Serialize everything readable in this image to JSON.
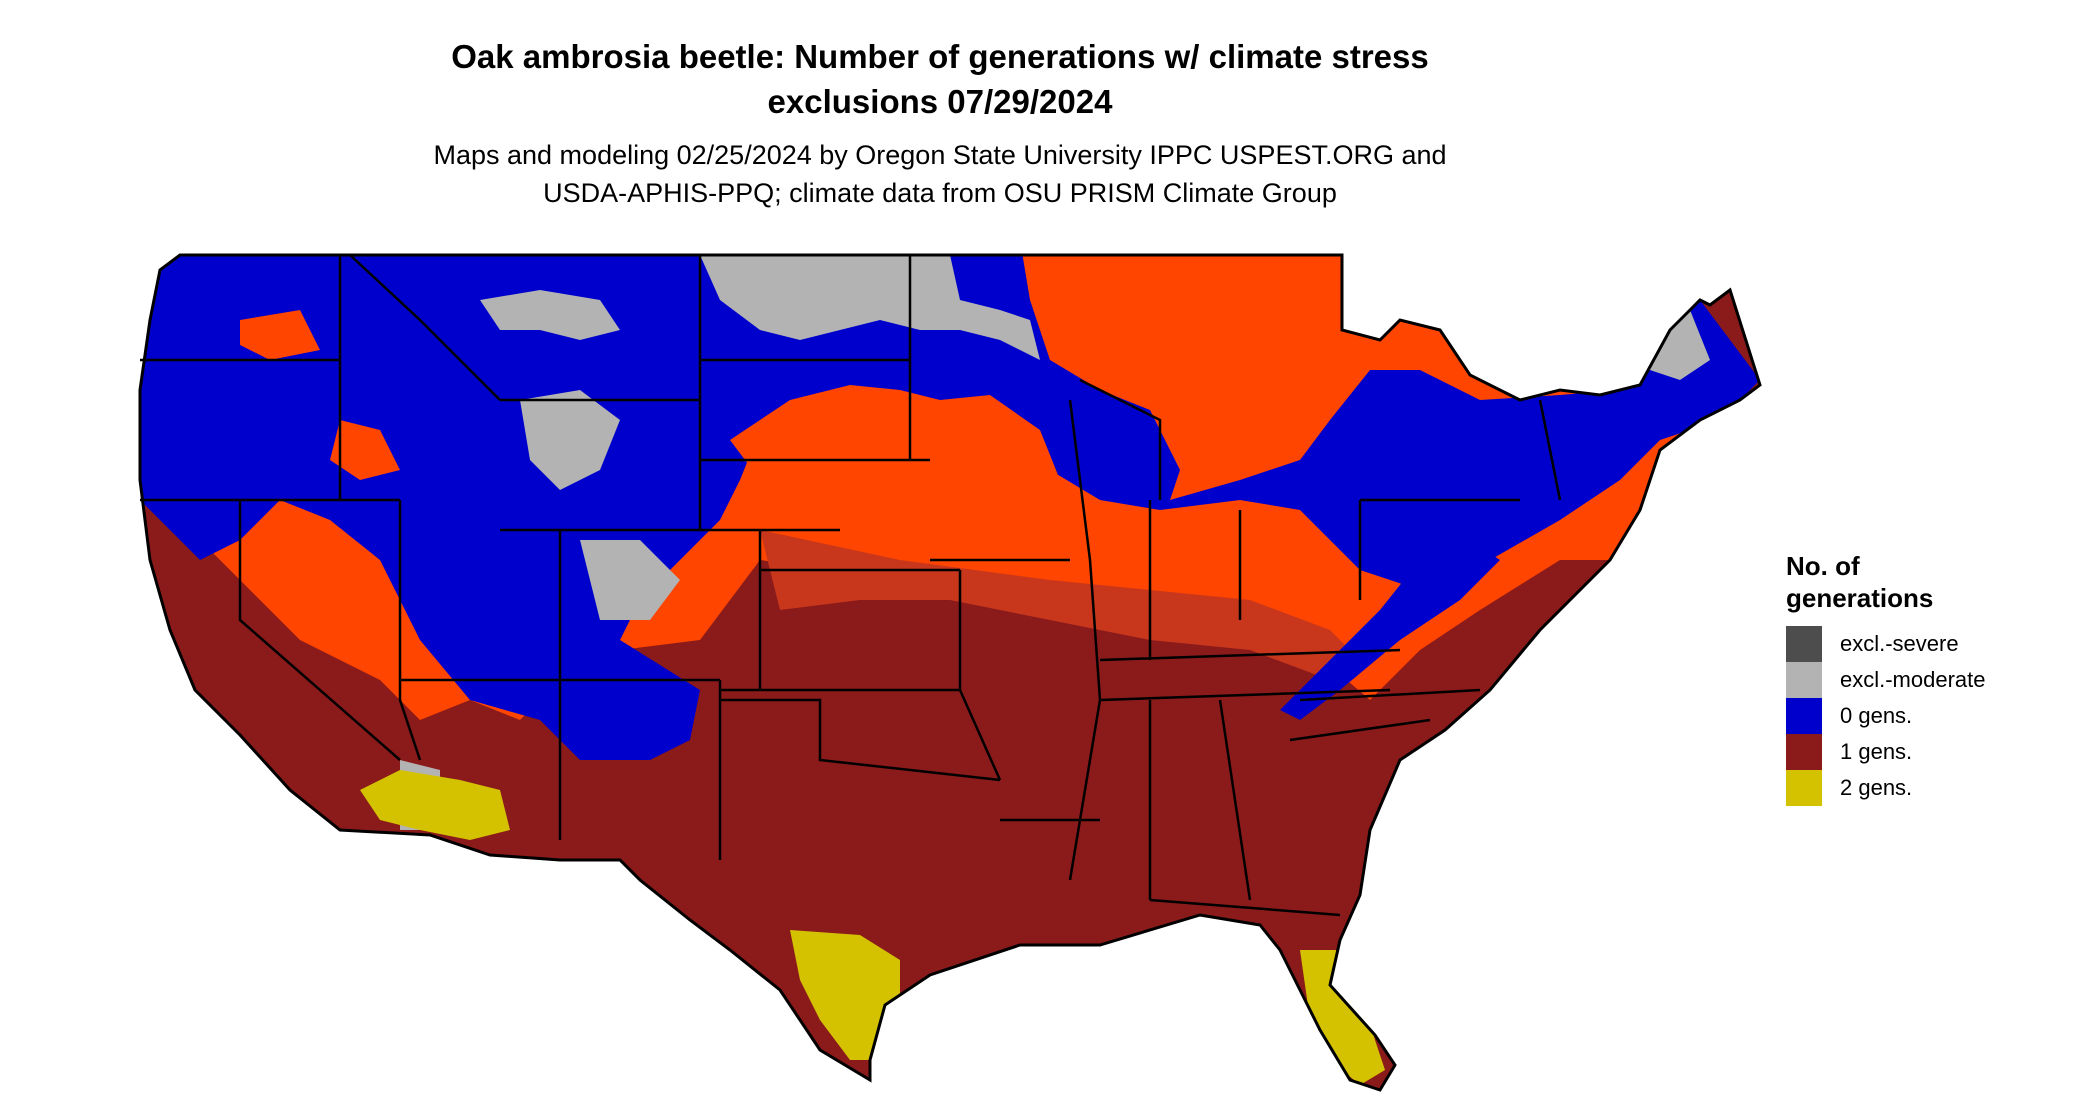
{
  "title": {
    "line1": "Oak ambrosia beetle: Number of generations w/ climate stress",
    "line2": "exclusions 07/29/2024"
  },
  "subtitle": {
    "line1": "Maps and modeling 02/25/2024 by Oregon State University IPPC USPEST.ORG and",
    "line2": "USDA-APHIS-PPQ; climate data from OSU PRISM Climate Group"
  },
  "legend": {
    "title_line1": "No. of",
    "title_line2": "generations",
    "items": [
      {
        "label": "excl.-severe",
        "color": "#4d4d4d"
      },
      {
        "label": "excl.-moderate",
        "color": "#b3b3b3"
      },
      {
        "label": "0 gens.",
        "color": "#0000cc"
      },
      {
        "label": "1 gens.",
        "color": "#8b1a1a"
      },
      {
        "label": "2 gens.",
        "color": "#d4c200"
      }
    ]
  },
  "colors": {
    "excl_severe": "#4d4d4d",
    "excl_moderate": "#b3b3b3",
    "zero_gens": "#0000cc",
    "one_gens_transition": "#ff4500",
    "one_gens": "#8b1a1a",
    "two_gens": "#d4c200",
    "state_borders": "#000000"
  }
}
